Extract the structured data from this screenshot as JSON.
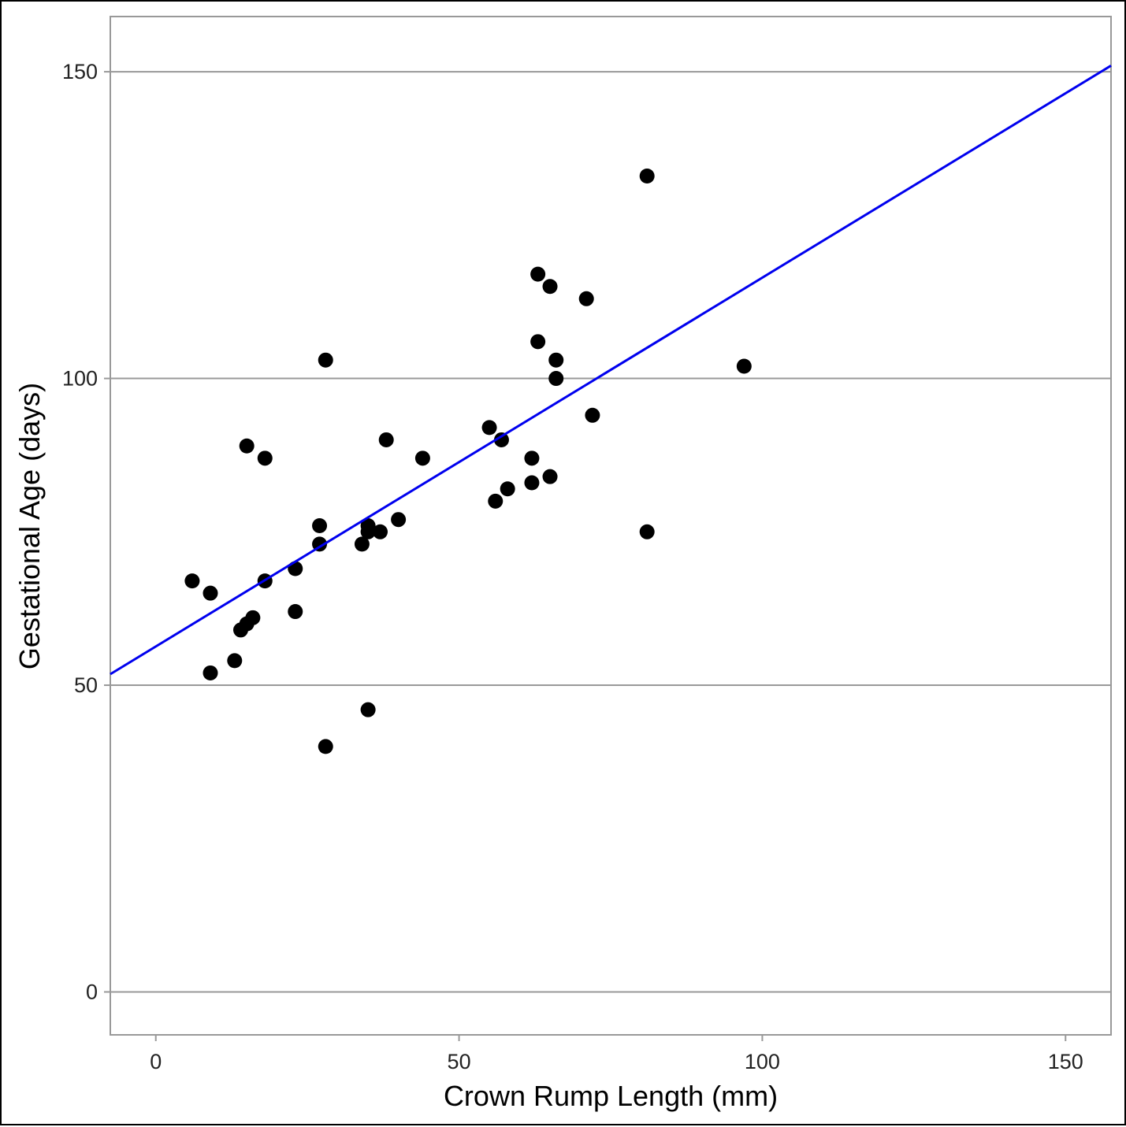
{
  "chart_data": {
    "type": "scatter",
    "title": "",
    "xlabel": "Crown Rump Length (mm)",
    "ylabel": "Gestational Age (days)",
    "xlim": [
      -7.5,
      157.5
    ],
    "ylim": [
      -7,
      159
    ],
    "x_ticks": [
      0,
      50,
      100,
      150
    ],
    "y_ticks": [
      0,
      50,
      100,
      150
    ],
    "grid": "horizontal",
    "legend": "none",
    "colors": {
      "points": "#000000",
      "fit_line": "#0000ee",
      "grid": "#999999",
      "panel_border": "#999999"
    },
    "series": [
      {
        "points": [
          [
            6,
            67
          ],
          [
            9,
            65
          ],
          [
            9,
            52
          ],
          [
            13,
            54
          ],
          [
            14,
            59
          ],
          [
            15,
            60
          ],
          [
            16,
            61
          ],
          [
            15,
            89
          ],
          [
            18,
            87
          ],
          [
            18,
            67
          ],
          [
            23,
            69
          ],
          [
            23,
            62
          ],
          [
            27,
            76
          ],
          [
            27,
            73
          ],
          [
            28,
            103
          ],
          [
            28,
            40
          ],
          [
            34,
            73
          ],
          [
            35,
            76
          ],
          [
            35,
            75
          ],
          [
            35,
            46
          ],
          [
            37,
            75
          ],
          [
            38,
            90
          ],
          [
            40,
            77
          ],
          [
            44,
            87
          ],
          [
            55,
            92
          ],
          [
            56,
            80
          ],
          [
            57,
            90
          ],
          [
            58,
            82
          ],
          [
            62,
            87
          ],
          [
            62,
            83
          ],
          [
            63,
            117
          ],
          [
            63,
            106
          ],
          [
            65,
            115
          ],
          [
            65,
            84
          ],
          [
            66,
            103
          ],
          [
            66,
            100
          ],
          [
            71,
            113
          ],
          [
            72,
            94
          ],
          [
            81,
            133
          ],
          [
            81,
            75
          ],
          [
            97,
            102
          ]
        ]
      }
    ],
    "fit_line": {
      "type": "linear",
      "x": [
        -7.5,
        157.5
      ],
      "y": [
        51.8,
        151.0
      ]
    }
  }
}
